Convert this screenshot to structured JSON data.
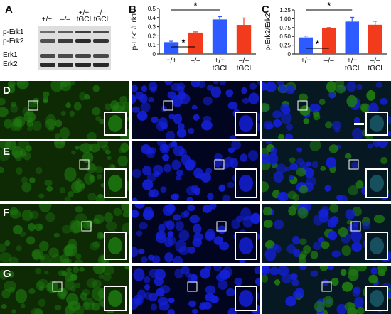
{
  "panel_labels": {
    "a": "A",
    "b": "B",
    "c": "C",
    "d": "D",
    "e": "E",
    "f": "F",
    "g": "G"
  },
  "blot": {
    "lanes": [
      {
        "line1": "",
        "line2": "+/+"
      },
      {
        "line1": "",
        "line2": "–/–"
      },
      {
        "line1": "+/+",
        "line2": "tGCI"
      },
      {
        "line1": "–/–",
        "line2": "tGCI"
      }
    ],
    "row_labels": [
      "p-Erk1",
      "p-Erk2",
      "Erk1",
      "Erk2"
    ]
  },
  "chart_data": [
    {
      "type": "bar",
      "ylabel": "p-Erk1/Erk1",
      "ylim": [
        0,
        0.5
      ],
      "yticks": [
        "0",
        "0.1",
        "0.2",
        "0.3",
        "0.4",
        "0.5"
      ],
      "categories": [
        [
          "+/+",
          ""
        ],
        [
          "–/–",
          ""
        ],
        [
          "+/+",
          "tGCI"
        ],
        [
          "–/–",
          "tGCI"
        ]
      ],
      "values": [
        0.13,
        0.235,
        0.38,
        0.32
      ],
      "errors": [
        0.01,
        0.008,
        0.03,
        0.075
      ],
      "colors": [
        "#2d5bff",
        "#f23a1c",
        "#2d5bff",
        "#f23a1c"
      ],
      "annotations": [
        {
          "text": "*",
          "from": 0,
          "to": 1
        },
        {
          "text": "*",
          "from": 0,
          "to": 2
        }
      ]
    },
    {
      "type": "bar",
      "ylabel": "p-Erk2/Erk2",
      "ylim": [
        0,
        1.25
      ],
      "yticks": [
        "0",
        "0.25",
        "0.50",
        "0.75",
        "1.00",
        "1.25"
      ],
      "categories": [
        [
          "+/+",
          ""
        ],
        [
          "–/–",
          ""
        ],
        [
          "+/+",
          "tGCI"
        ],
        [
          "–/–",
          "tGCI"
        ]
      ],
      "values": [
        0.47,
        0.73,
        0.92,
        0.83
      ],
      "errors": [
        0.04,
        0.02,
        0.12,
        0.1
      ],
      "colors": [
        "#2d5bff",
        "#f23a1c",
        "#2d5bff",
        "#f23a1c"
      ],
      "annotations": [
        {
          "text": "*",
          "from": 0,
          "to": 1
        },
        {
          "text": "*",
          "from": 0,
          "to": 2
        }
      ]
    }
  ],
  "micrographs": {
    "columns": [
      "green-stain",
      "nuclear-stain",
      "merge"
    ],
    "colors": {
      "green": "#1f7a10",
      "green_dark": "#0d2a05",
      "blue": "#1420d8",
      "blue_dark": "#020520",
      "merge": "#1a5a6a"
    },
    "rows": [
      "D",
      "E",
      "F",
      "G"
    ]
  }
}
